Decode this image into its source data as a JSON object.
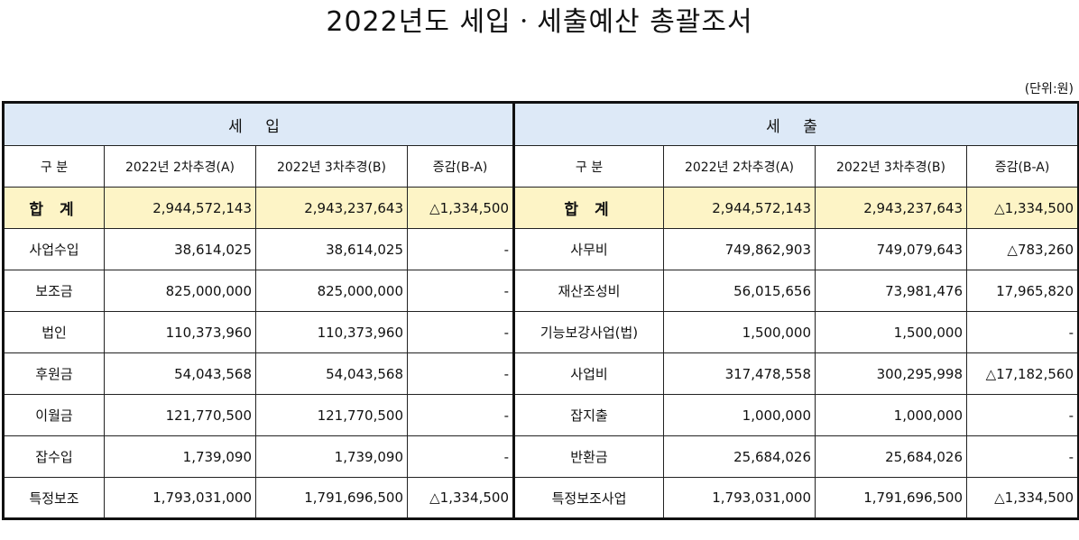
{
  "title": "2022년도 세입ㆍ세출예산 총괄조서",
  "unit": "(단위:원)",
  "income": {
    "section_label": "세    입",
    "headers": [
      "구 분",
      "2022년 2차추경(A)",
      "2022년 3차추경(B)",
      "증감(B-A)"
    ],
    "total": {
      "label": "합 계",
      "a": "2,944,572,143",
      "b": "2,943,237,643",
      "diff": "△1,334,500"
    },
    "rows": [
      {
        "label": "사업수입",
        "a": "38,614,025",
        "b": "38,614,025",
        "diff": "-"
      },
      {
        "label": "보조금",
        "a": "825,000,000",
        "b": "825,000,000",
        "diff": "-"
      },
      {
        "label": "법인",
        "a": "110,373,960",
        "b": "110,373,960",
        "diff": "-"
      },
      {
        "label": "후원금",
        "a": "54,043,568",
        "b": "54,043,568",
        "diff": "-"
      },
      {
        "label": "이월금",
        "a": "121,770,500",
        "b": "121,770,500",
        "diff": "-"
      },
      {
        "label": "잡수입",
        "a": "1,739,090",
        "b": "1,739,090",
        "diff": "-"
      },
      {
        "label": "특정보조",
        "a": "1,793,031,000",
        "b": "1,791,696,500",
        "diff": "△1,334,500"
      }
    ]
  },
  "expense": {
    "section_label": "세    출",
    "headers": [
      "구 분",
      "2022년 2차추경(A)",
      "2022년 3차추경(B)",
      "증감(B-A)"
    ],
    "total": {
      "label": "합 계",
      "a": "2,944,572,143",
      "b": "2,943,237,643",
      "diff": "△1,334,500"
    },
    "rows": [
      {
        "label": "사무비",
        "a": "749,862,903",
        "b": "749,079,643",
        "diff": "△783,260"
      },
      {
        "label": "재산조성비",
        "a": "56,015,656",
        "b": "73,981,476",
        "diff": "17,965,820"
      },
      {
        "label": "기능보강사업(법)",
        "a": "1,500,000",
        "b": "1,500,000",
        "diff": "-"
      },
      {
        "label": "사업비",
        "a": "317,478,558",
        "b": "300,295,998",
        "diff": "△17,182,560"
      },
      {
        "label": "잡지출",
        "a": "1,000,000",
        "b": "1,000,000",
        "diff": "-"
      },
      {
        "label": "반환금",
        "a": "25,684,026",
        "b": "25,684,026",
        "diff": "-"
      },
      {
        "label": "특정보조사업",
        "a": "1,793,031,000",
        "b": "1,791,696,500",
        "diff": "△1,334,500"
      }
    ]
  }
}
